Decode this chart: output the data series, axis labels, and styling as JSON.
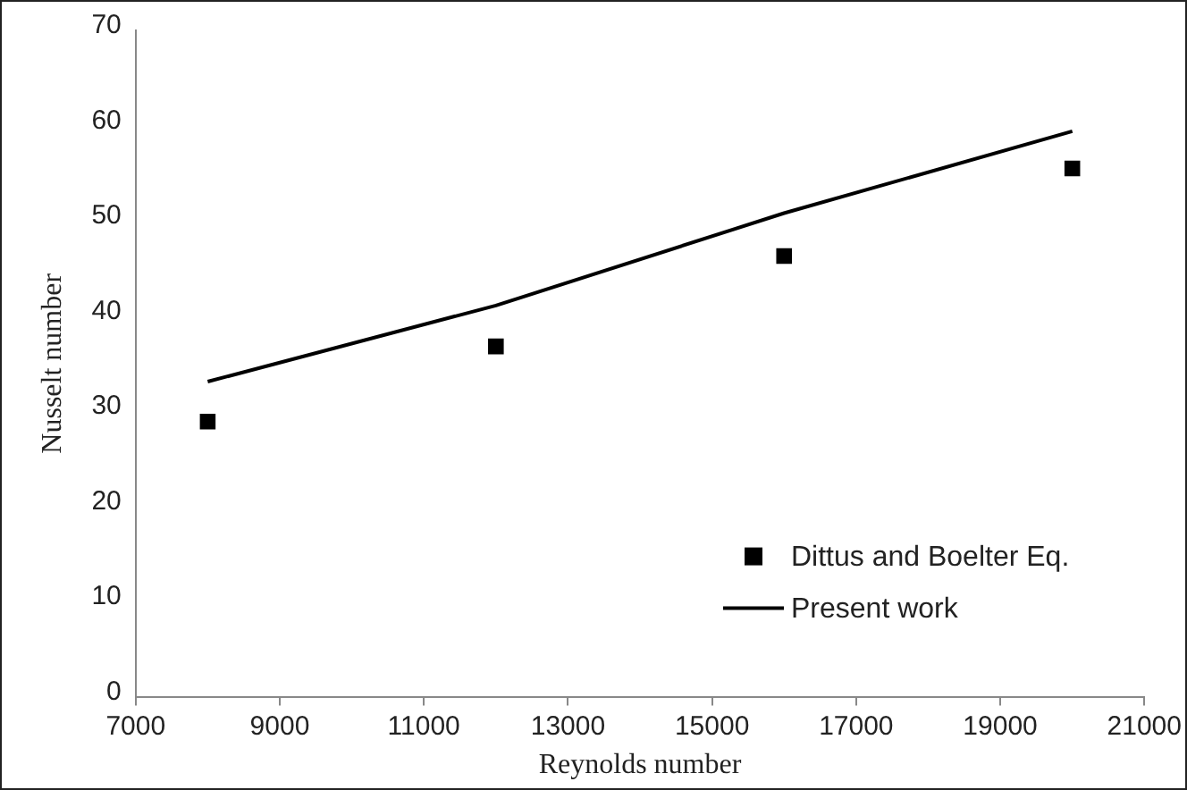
{
  "chart_data": {
    "type": "line",
    "xlabel": "Reynolds number",
    "ylabel": "Nusselt number",
    "x": [
      8000,
      12000,
      16000,
      20000
    ],
    "series": [
      {
        "name": "Dittus and Boelter Eq.",
        "type": "scatter",
        "marker": "square",
        "color": "#000000",
        "values": [
          28.9,
          36.8,
          46.3,
          55.5
        ]
      },
      {
        "name": "Present work",
        "type": "line",
        "marker": "none",
        "color": "#000000",
        "values": [
          33.1,
          41.1,
          50.8,
          59.4
        ]
      }
    ],
    "xlim": [
      7000,
      21000
    ],
    "xticks": [
      7000,
      9000,
      11000,
      13000,
      15000,
      17000,
      19000,
      21000
    ],
    "ylim": [
      0,
      70
    ],
    "yticks": [
      0,
      10,
      20,
      30,
      40,
      50,
      60,
      70
    ],
    "grid": false,
    "legend": "bottom right"
  }
}
